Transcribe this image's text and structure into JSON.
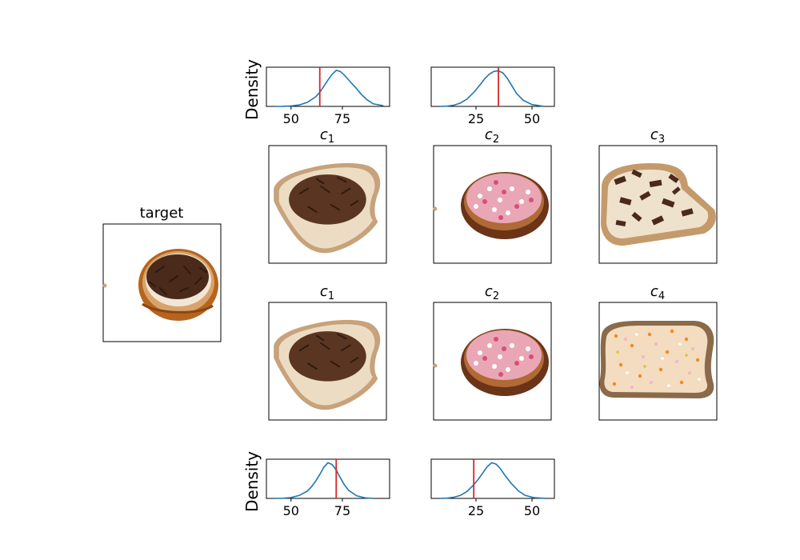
{
  "figure_labels": {
    "target": "target",
    "density_label": "Density",
    "c_letter": "c"
  },
  "target_image": {
    "title": "target",
    "item": "round-bun",
    "topping": "chocolate-sprinkles"
  },
  "grid_rows": [
    {
      "row": 1,
      "panels": [
        {
          "title_sub": "1",
          "item": "bread-slice",
          "topping": "chocolate-sprinkles"
        },
        {
          "title_sub": "2",
          "item": "round-bun",
          "topping": "pink-white-aniseed"
        },
        {
          "title_sub": "3",
          "item": "bread-slice",
          "topping": "chocolate-flakes"
        }
      ]
    },
    {
      "row": 2,
      "panels": [
        {
          "title_sub": "1",
          "item": "bread-slice",
          "topping": "chocolate-sprinkles"
        },
        {
          "title_sub": "2",
          "item": "round-bun",
          "topping": "pink-white-aniseed"
        },
        {
          "title_sub": "4",
          "item": "wholewheat-slice",
          "topping": "fruit-sprinkles"
        }
      ]
    }
  ],
  "colors": {
    "curve": "#1f77b4",
    "marker": "#d62728",
    "axis": "#000000"
  },
  "chart_data": [
    {
      "type": "line",
      "panel": "top-left",
      "ylabel": "Density",
      "xlim": [
        38,
        98
      ],
      "xticks": [
        50,
        75
      ],
      "x": [
        42,
        46,
        50,
        54,
        58,
        62,
        64,
        66,
        68,
        70,
        72,
        74,
        76,
        78,
        80,
        82,
        84,
        87,
        90,
        95
      ],
      "y": [
        0.0,
        0.003,
        0.012,
        0.04,
        0.11,
        0.26,
        0.38,
        0.55,
        0.72,
        0.87,
        0.98,
        0.95,
        0.85,
        0.72,
        0.6,
        0.48,
        0.34,
        0.18,
        0.07,
        0.02
      ],
      "marker_x": 64
    },
    {
      "type": "line",
      "panel": "top-right",
      "ylabel": "",
      "xlim": [
        5,
        60
      ],
      "xticks": [
        25,
        50
      ],
      "x": [
        9,
        12,
        15,
        18,
        21,
        24,
        27,
        29,
        31,
        33,
        35,
        37,
        39,
        41,
        43,
        46,
        50,
        55
      ],
      "y": [
        0.0,
        0.006,
        0.03,
        0.09,
        0.2,
        0.38,
        0.6,
        0.76,
        0.88,
        0.95,
        0.97,
        0.91,
        0.76,
        0.56,
        0.36,
        0.17,
        0.05,
        0.005
      ],
      "marker_x": 35
    },
    {
      "type": "line",
      "panel": "bottom-left",
      "ylabel": "Density",
      "xlim": [
        38,
        98
      ],
      "xticks": [
        50,
        75
      ],
      "x": [
        42,
        46,
        50,
        54,
        58,
        60,
        62,
        64,
        66,
        68,
        70,
        72,
        74,
        76,
        78,
        82,
        86,
        90
      ],
      "y": [
        0.0,
        0.005,
        0.025,
        0.08,
        0.2,
        0.32,
        0.47,
        0.65,
        0.85,
        0.97,
        0.92,
        0.77,
        0.56,
        0.37,
        0.22,
        0.07,
        0.015,
        0.0
      ],
      "marker_x": 72
    },
    {
      "type": "line",
      "panel": "bottom-right",
      "ylabel": "",
      "xlim": [
        5,
        60
      ],
      "xticks": [
        25,
        50
      ],
      "x": [
        9,
        12,
        15,
        18,
        21,
        24,
        26,
        28,
        30,
        32,
        34,
        36,
        38,
        41,
        44,
        47,
        51,
        56
      ],
      "y": [
        0.0,
        0.006,
        0.03,
        0.08,
        0.19,
        0.37,
        0.52,
        0.69,
        0.86,
        0.97,
        0.93,
        0.8,
        0.62,
        0.39,
        0.2,
        0.08,
        0.02,
        0.003
      ],
      "marker_x": 24
    }
  ]
}
